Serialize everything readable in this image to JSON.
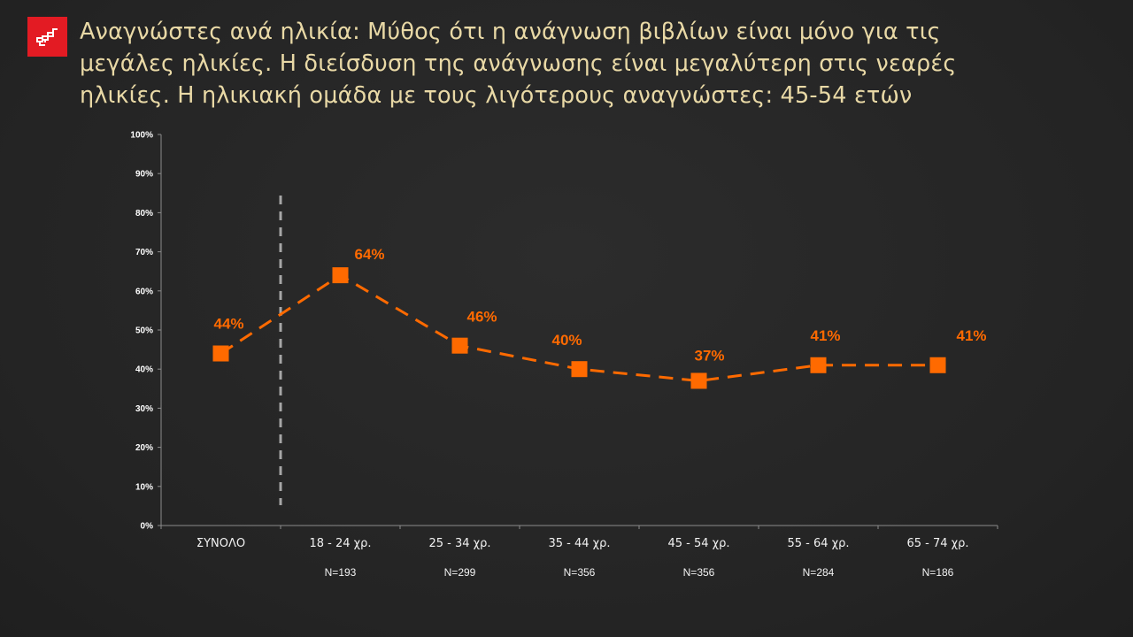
{
  "logo": {
    "icon": "brand-logo-icon",
    "color": "#e31b23"
  },
  "title": {
    "lines": [
      "Αναγνώστες ανά ηλικία: Μύθος ότι η ανάγνωση βιβλίων είναι μόνο για τις",
      "μεγάλες ηλικίες. Η διείσδυση της ανάγνωσης είναι μεγαλύτερη στις νεαρές",
      "ηλικίες. Η ηλικιακή ομάδα με τους λιγότερους αναγνώστες: 45-54 ετών"
    ]
  },
  "chart_data": {
    "type": "line",
    "title": "Αναγνώστες ανά ηλικία",
    "xlabel": "",
    "ylabel": "",
    "ylim": [
      0,
      100
    ],
    "yticks": [
      "0%",
      "10%",
      "20%",
      "30%",
      "40%",
      "50%",
      "60%",
      "70%",
      "80%",
      "90%",
      "100%"
    ],
    "categories": [
      "ΣΥΝΟΛΟ",
      "18 - 24 χρ.",
      "25 - 34 χρ.",
      "35 - 44 χρ.",
      "45 - 54 χρ.",
      "55 - 64 χρ.",
      "65 - 74 χρ."
    ],
    "sample_sizes": [
      "",
      "N=193",
      "N=299",
      "N=356",
      "N=356",
      "N=284",
      "N=186"
    ],
    "series": [
      {
        "name": "Αναγνώστες",
        "values": [
          44,
          64,
          46,
          40,
          37,
          41,
          41
        ],
        "labels": [
          "44%",
          "64%",
          "46%",
          "40%",
          "37%",
          "41%",
          "41%"
        ],
        "color": "#ff6a00",
        "line_style": "dashed",
        "marker": "square"
      }
    ],
    "annotations": [
      {
        "type": "vertical-dashed-line",
        "position": "between ΣΥΝΟΛΟ and 18 - 24 χρ.",
        "color": "#a6a6a6"
      }
    ],
    "grid": false,
    "legend": "none"
  }
}
